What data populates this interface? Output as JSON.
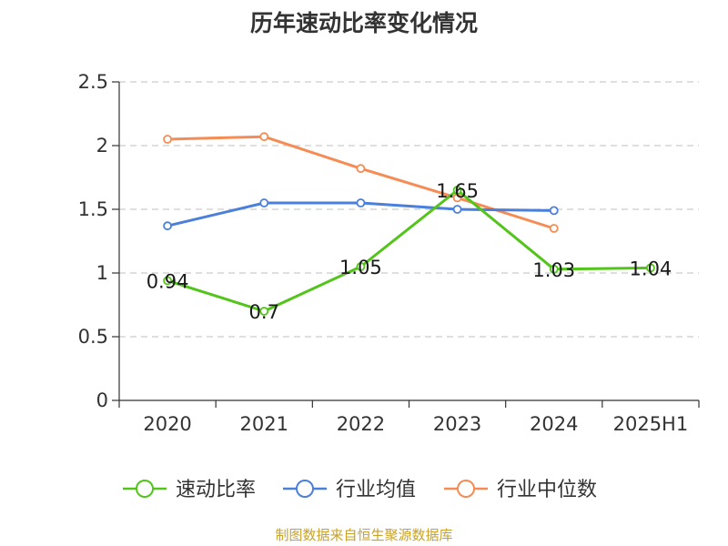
{
  "chart_data": {
    "type": "line",
    "title": "历年速动比率变化情况",
    "categories": [
      "2020",
      "2021",
      "2022",
      "2023",
      "2024",
      "2025H1"
    ],
    "y_ticks": [
      "0",
      "0.5",
      "1",
      "1.5",
      "2",
      "2.5"
    ],
    "ylim": [
      0,
      2.5
    ],
    "grid": true,
    "legend_position": "bottom",
    "series": [
      {
        "name": "速动比率",
        "color": "#52c41a",
        "values": [
          0.94,
          0.7,
          1.05,
          1.65,
          1.03,
          1.04
        ],
        "labels": [
          "0.94",
          "0.7",
          "1.05",
          "1.65",
          "1.03",
          "1.04"
        ]
      },
      {
        "name": "行业均值",
        "color": "#4a7fdb",
        "values": [
          1.37,
          1.55,
          1.55,
          1.5,
          1.49,
          null
        ]
      },
      {
        "name": "行业中位数",
        "color": "#f58c55",
        "values": [
          2.05,
          2.07,
          1.82,
          1.59,
          1.35,
          null
        ]
      }
    ]
  },
  "footer": {
    "source": "制图数据来自恒生聚源数据库"
  }
}
